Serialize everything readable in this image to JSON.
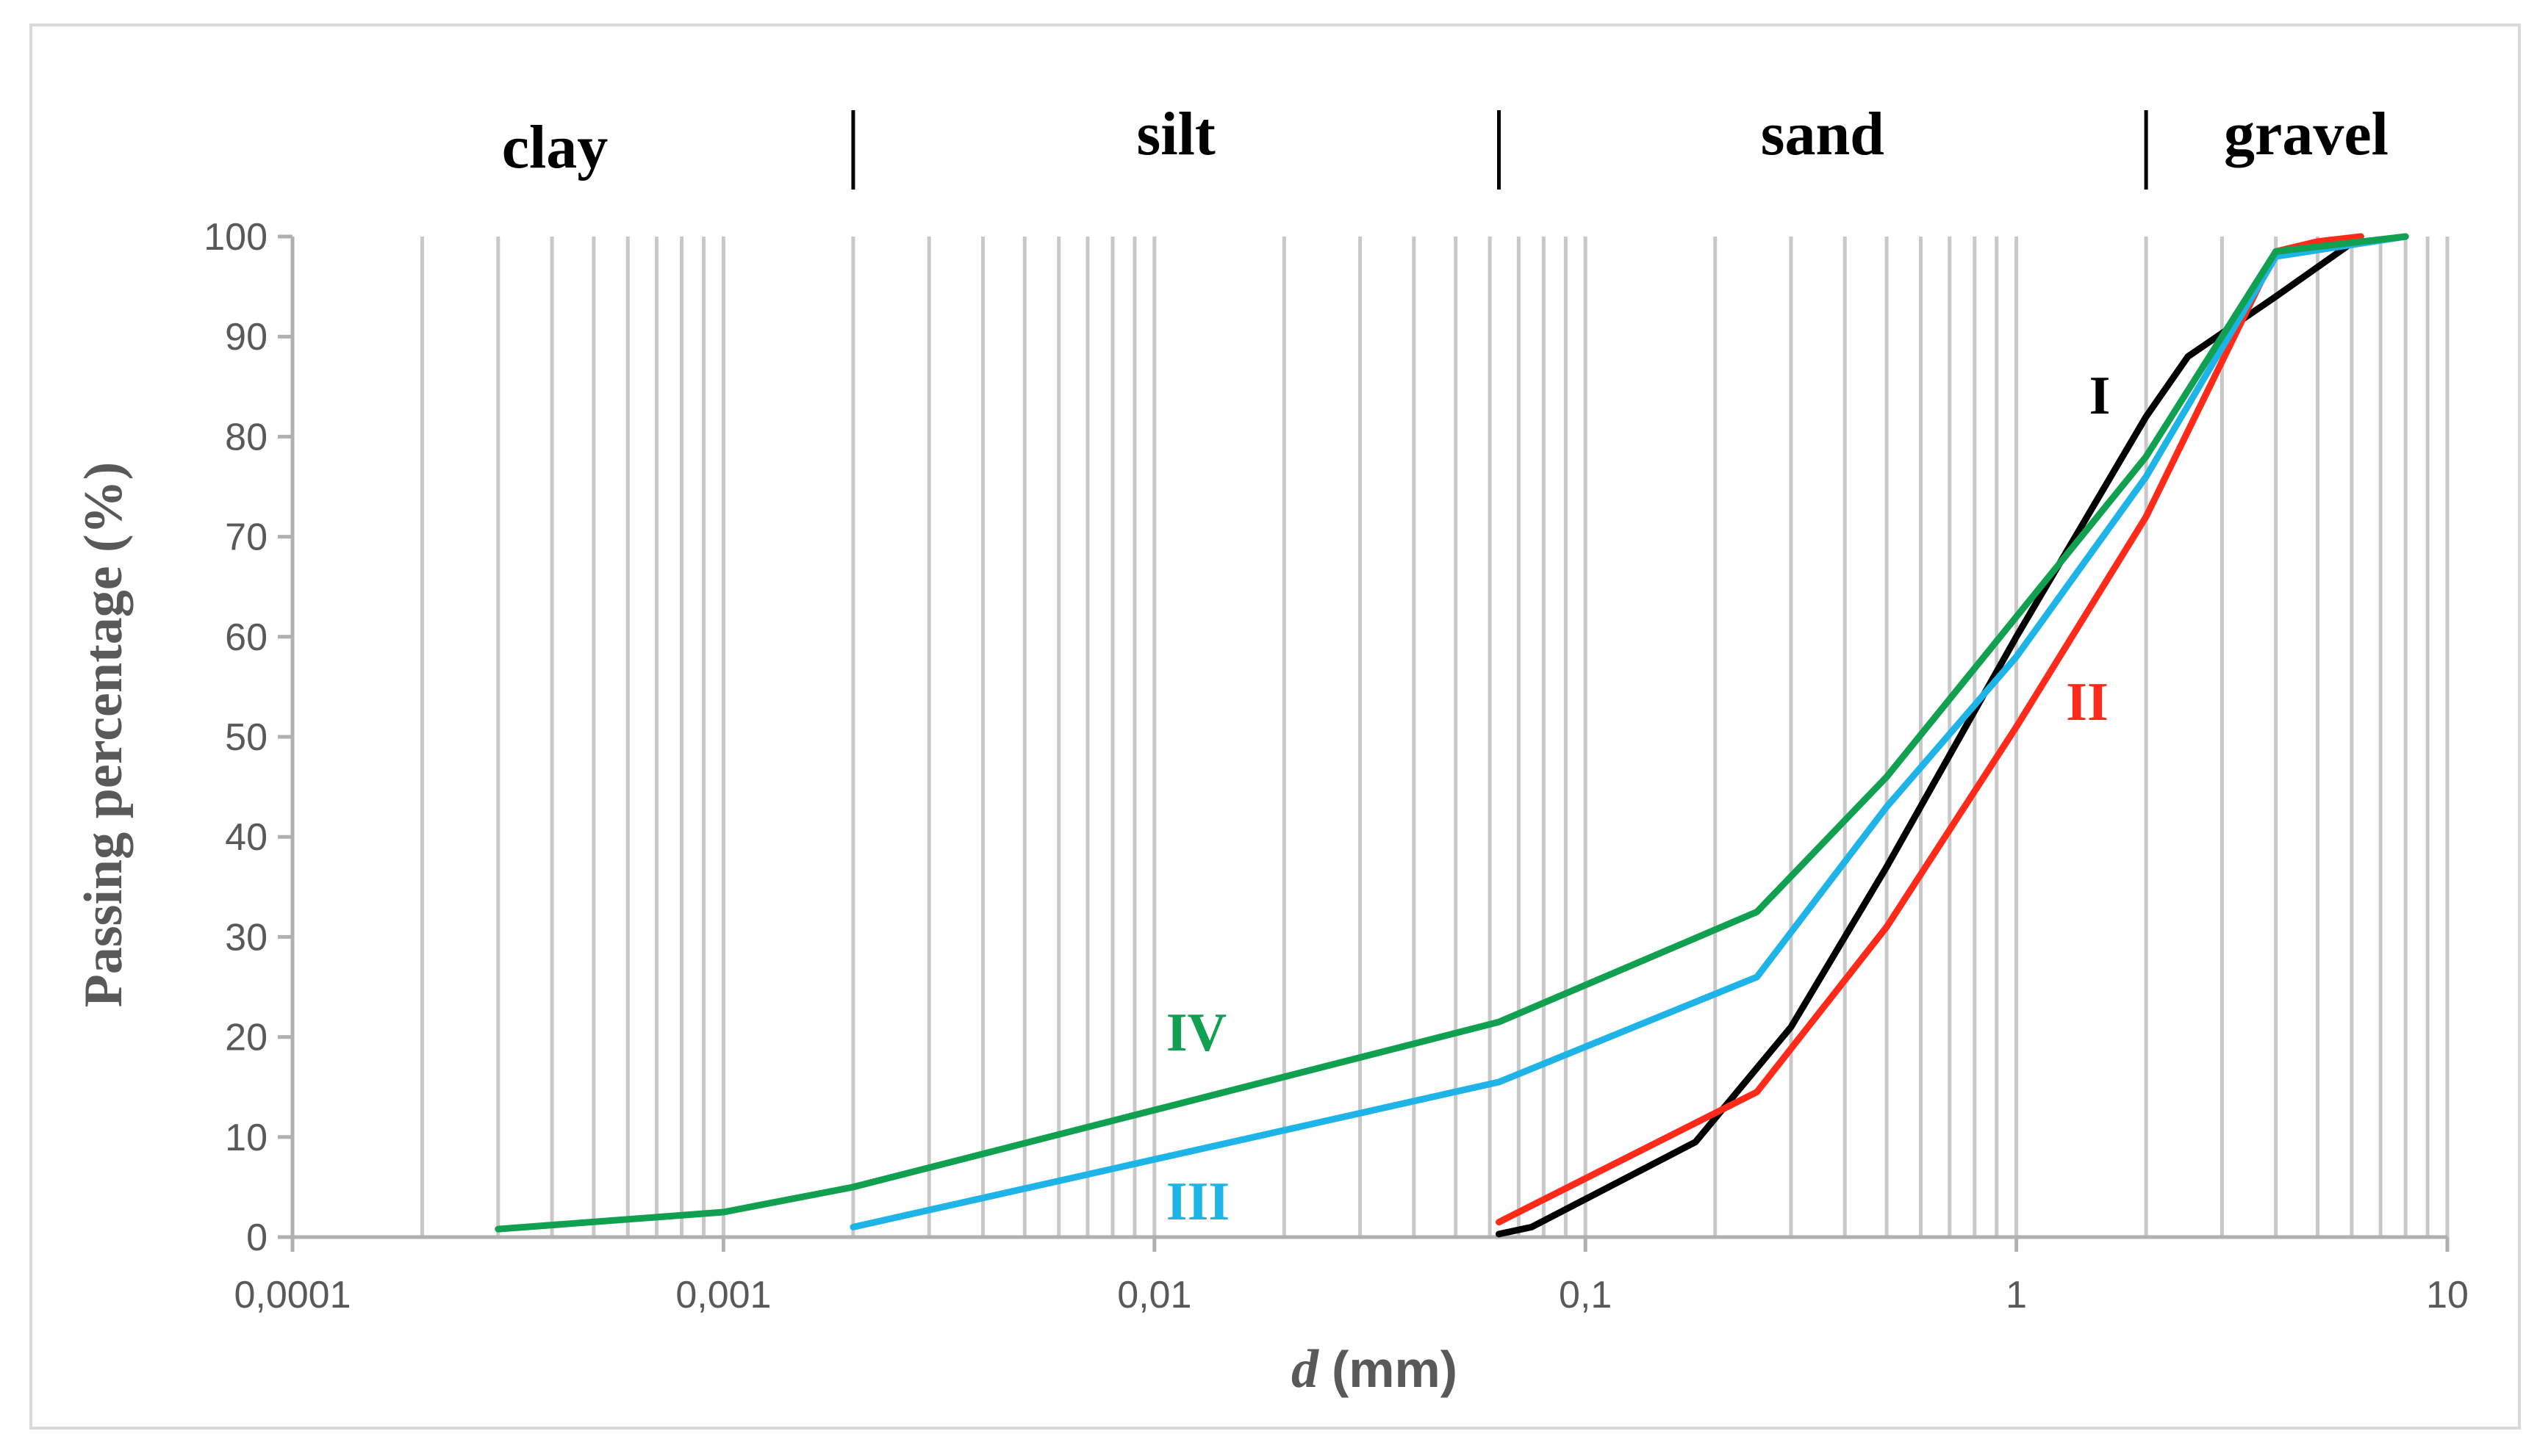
{
  "chart_data": {
    "type": "line",
    "xscale": "log",
    "xlim": [
      0.0001,
      10
    ],
    "ylim": [
      0,
      100
    ],
    "xlabel_italic": "d",
    "xlabel_unit": "(mm)",
    "ylabel": "Passing percentage  (%)",
    "x_tick_labels": [
      "0,0001",
      "0,001",
      "0,01",
      "0,1",
      "1",
      "10"
    ],
    "y_ticks": [
      0,
      10,
      20,
      30,
      40,
      50,
      60,
      70,
      80,
      90,
      100
    ],
    "grid": "vertical log minor grid lines",
    "zones": [
      {
        "label": "clay"
      },
      {
        "label": "silt"
      },
      {
        "label": "sand"
      },
      {
        "label": "gravel"
      }
    ],
    "zone_boundaries": [
      0.002,
      0.063,
      2
    ],
    "series": [
      {
        "name": "I",
        "color": "#000000",
        "points": [
          [
            0.063,
            0.3
          ],
          [
            0.075,
            1
          ],
          [
            0.18,
            9.5
          ],
          [
            0.3,
            21
          ],
          [
            0.5,
            37
          ],
          [
            1,
            60
          ],
          [
            2,
            82
          ],
          [
            2.5,
            88
          ],
          [
            4,
            94
          ],
          [
            6.3,
            100
          ]
        ]
      },
      {
        "name": "II",
        "color": "#ff2a1a",
        "points": [
          [
            0.063,
            1.5
          ],
          [
            0.25,
            14.5
          ],
          [
            0.5,
            31
          ],
          [
            1,
            51
          ],
          [
            2,
            72
          ],
          [
            4,
            98.5
          ],
          [
            5,
            99.5
          ],
          [
            6.3,
            100
          ]
        ]
      },
      {
        "name": "III",
        "color": "#1eb4e8",
        "points": [
          [
            0.002,
            1
          ],
          [
            0.063,
            15.5
          ],
          [
            0.25,
            26
          ],
          [
            0.5,
            43
          ],
          [
            1,
            58
          ],
          [
            2,
            76
          ],
          [
            4,
            98
          ],
          [
            8,
            100
          ]
        ]
      },
      {
        "name": "IV",
        "color": "#10a050",
        "points": [
          [
            0.0003,
            0.8
          ],
          [
            0.001,
            2.5
          ],
          [
            0.002,
            5
          ],
          [
            0.063,
            21.5
          ],
          [
            0.25,
            32.5
          ],
          [
            0.5,
            46
          ],
          [
            1,
            62
          ],
          [
            2,
            78
          ],
          [
            4,
            98.5
          ],
          [
            8,
            100
          ]
        ]
      }
    ]
  }
}
